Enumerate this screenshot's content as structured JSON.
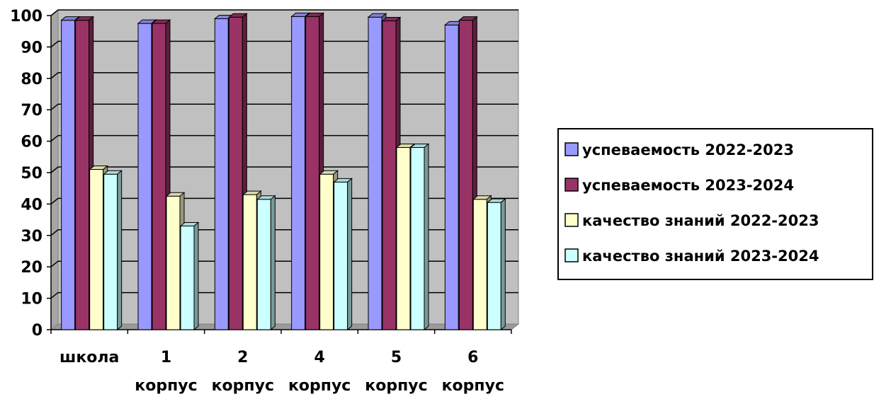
{
  "chart_data": {
    "type": "bar",
    "title": "",
    "xlabel": "",
    "ylabel": "",
    "ylim": [
      0,
      100
    ],
    "yticks": [
      "0",
      "10",
      "20",
      "30",
      "40",
      "50",
      "60",
      "70",
      "80",
      "90",
      "100"
    ],
    "categories": [
      [
        "школа"
      ],
      [
        "1",
        "корпус"
      ],
      [
        "2",
        "корпус"
      ],
      [
        "4",
        "корпус"
      ],
      [
        "5",
        "корпус"
      ],
      [
        "6",
        "корпус"
      ]
    ],
    "series": [
      {
        "name": "успеваемость 2022-2023",
        "color": "#9999ff",
        "values": [
          98.5,
          97.5,
          99,
          99.7,
          99.5,
          97
        ]
      },
      {
        "name": "успеваемость 2023-2024",
        "color": "#993366",
        "values": [
          98.5,
          97.5,
          99.5,
          99.7,
          98.3,
          98.5
        ]
      },
      {
        "name": "качество знаний 2022-2023",
        "color": "#ffffcc",
        "values": [
          51,
          42.5,
          43,
          49.5,
          58,
          41.5
        ]
      },
      {
        "name": "качество знаний 2023-2024",
        "color": "#ccffff",
        "values": [
          49.5,
          33,
          41.5,
          47,
          58,
          40.5
        ]
      }
    ],
    "grid": true,
    "plot_background": "#c0c0c0",
    "legend_position": "right"
  }
}
